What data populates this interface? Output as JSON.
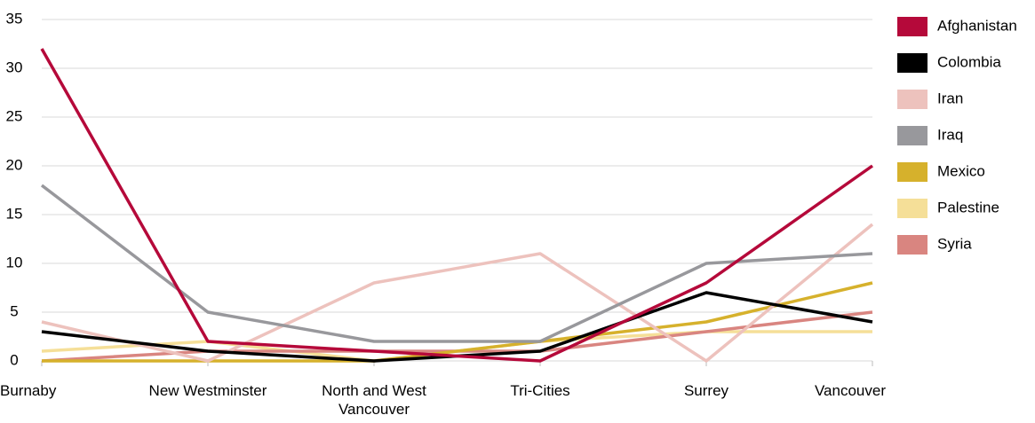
{
  "chart_data": {
    "type": "line",
    "categories": [
      "Burnaby",
      "New Westminster",
      "North and West Vancouver",
      "Tri-Cities",
      "Surrey",
      "Vancouver"
    ],
    "series": [
      {
        "name": "Afghanistan",
        "color": "#b5093a",
        "values": [
          32,
          2,
          1,
          0,
          8,
          20
        ]
      },
      {
        "name": "Colombia",
        "color": "#000000",
        "values": [
          3,
          1,
          0,
          1,
          7,
          4
        ]
      },
      {
        "name": "Iran",
        "color": "#edc2bd",
        "values": [
          4,
          0,
          8,
          11,
          0,
          14
        ]
      },
      {
        "name": "Iraq",
        "color": "#98989c",
        "values": [
          18,
          5,
          2,
          2,
          10,
          11
        ]
      },
      {
        "name": "Mexico",
        "color": "#d6b12c",
        "values": [
          0,
          0,
          0,
          2,
          4,
          8
        ]
      },
      {
        "name": "Palestine",
        "color": "#f5df98",
        "values": [
          1,
          2,
          0,
          2,
          3,
          3
        ]
      },
      {
        "name": "Syria",
        "color": "#d98580",
        "values": [
          0,
          1,
          1,
          1,
          3,
          5
        ]
      }
    ],
    "ylim": [
      0,
      35
    ],
    "yticks": [
      0,
      5,
      10,
      15,
      20,
      25,
      30,
      35
    ],
    "grid": true
  }
}
